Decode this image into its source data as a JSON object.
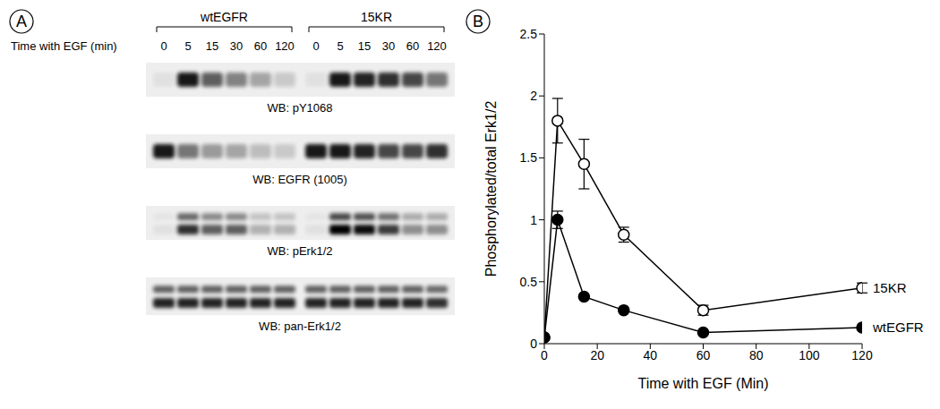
{
  "blot_panel": {
    "label": "A",
    "time_label": "Time with EGF (min)",
    "groups": [
      {
        "name": "wtEGFR",
        "times": [
          0,
          5,
          15,
          30,
          60,
          120
        ]
      },
      {
        "name": "15KR",
        "times": [
          0,
          5,
          15,
          30,
          60,
          120
        ]
      }
    ],
    "blots": [
      {
        "label": "WB: pY1068",
        "bands": 1,
        "intensity": [
          0.05,
          0.9,
          0.6,
          0.45,
          0.3,
          0.15,
          0.05,
          0.9,
          0.85,
          0.8,
          0.7,
          0.5
        ]
      },
      {
        "label": "WB: EGFR (1005)",
        "bands": 1,
        "intensity": [
          0.9,
          0.5,
          0.35,
          0.3,
          0.2,
          0.15,
          0.9,
          0.9,
          0.85,
          0.7,
          0.7,
          0.8
        ]
      },
      {
        "label": "WB: pErk1/2",
        "bands": 2,
        "intensity": [
          0.05,
          0.8,
          0.6,
          0.6,
          0.25,
          0.25,
          0.05,
          1,
          0.95,
          0.75,
          0.4,
          0.4
        ]
      },
      {
        "label": "WB: pan-Erk1/2",
        "bands": 2,
        "intensity": [
          0.85,
          0.85,
          0.85,
          0.85,
          0.85,
          0.85,
          0.85,
          0.85,
          0.85,
          0.85,
          0.85,
          0.8
        ]
      }
    ]
  },
  "chart_data": {
    "type": "line",
    "panel_label": "B",
    "x_label": "Time with EGF (Min)",
    "y_label": "Phosphorylated/total Erk1/2",
    "x": [
      0,
      5,
      15,
      30,
      60,
      120
    ],
    "xlim": [
      0,
      120
    ],
    "xticks": [
      0,
      20,
      40,
      60,
      80,
      100,
      120
    ],
    "ylim": [
      0,
      2.5
    ],
    "yticks": [
      0,
      0.5,
      1,
      1.5,
      2,
      2.5
    ],
    "grid": false,
    "series": [
      {
        "name": "15KR",
        "color": "#000000",
        "marker": "open",
        "values": [
          0.05,
          1.8,
          1.45,
          0.88,
          0.27,
          0.45
        ],
        "errors": [
          null,
          0.18,
          0.2,
          0.06,
          0.04,
          0.04
        ]
      },
      {
        "name": "wtEGFR",
        "color": "#000000",
        "marker": "filled",
        "values": [
          0.05,
          1.0,
          0.38,
          0.27,
          0.09,
          0.13
        ],
        "errors": [
          null,
          0.07,
          null,
          null,
          null,
          null
        ]
      }
    ]
  }
}
